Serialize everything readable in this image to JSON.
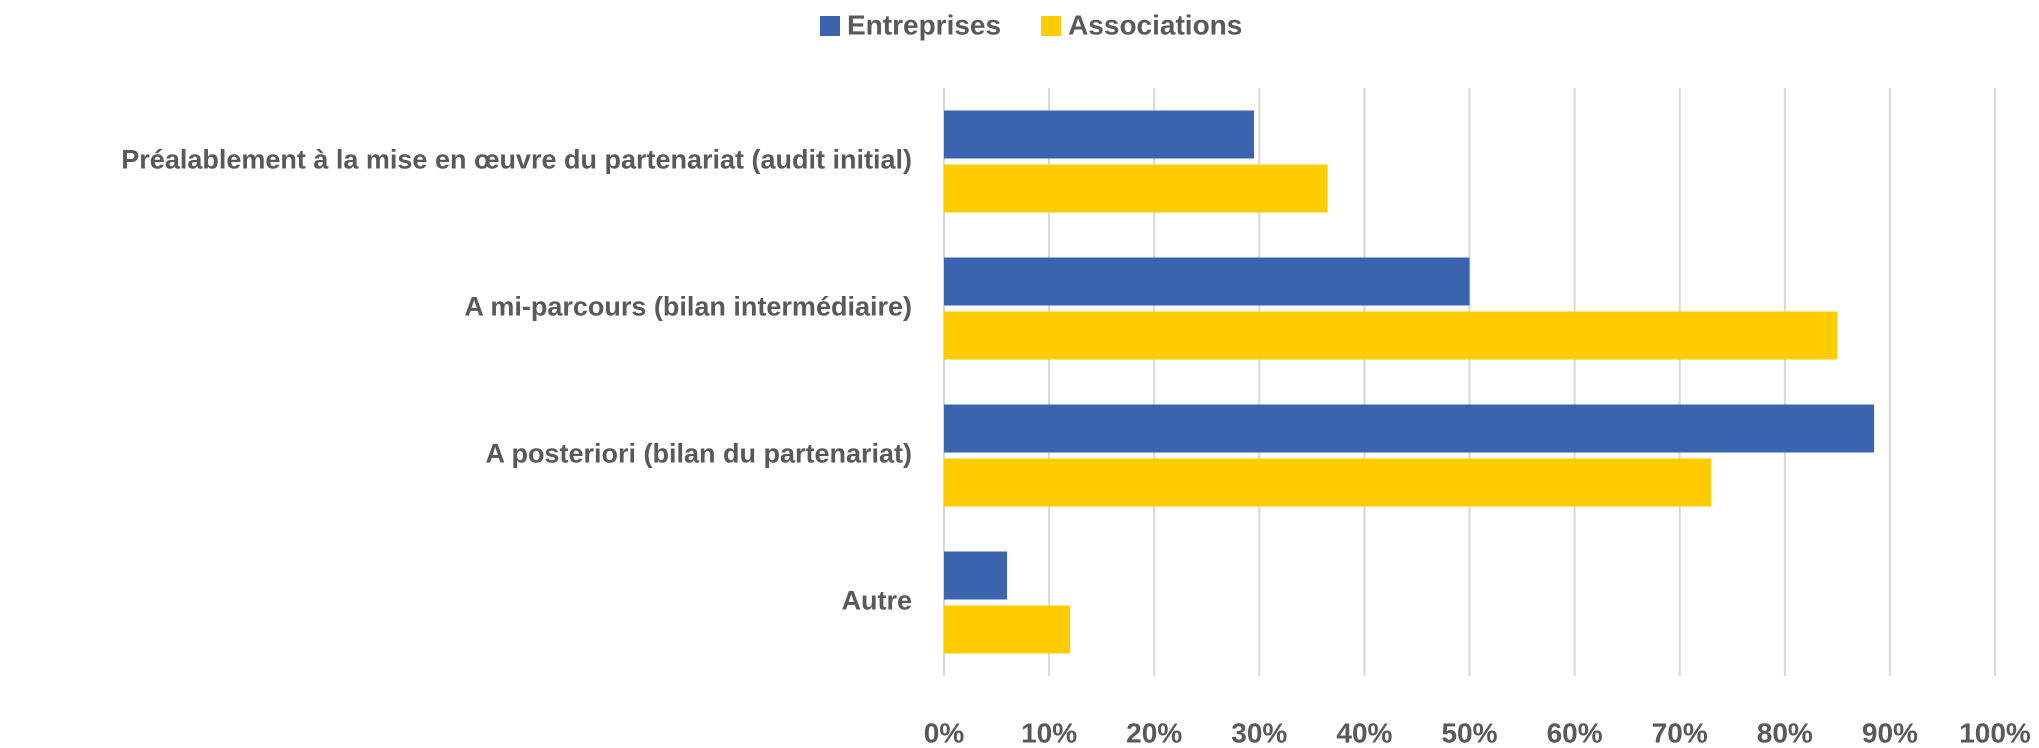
{
  "chart_data": {
    "type": "hbar",
    "categories": [
      "Préalablement à la mise en œuvre du partenariat (audit initial)",
      "A mi-parcours (bilan intermédiaire)",
      "A posteriori (bilan du partenariat)",
      "Autre"
    ],
    "series": [
      {
        "name": "Entreprises",
        "color": "#3b64ae",
        "values": [
          29.5,
          50,
          88.5,
          6
        ]
      },
      {
        "name": "Associations",
        "color": "#ffcc00",
        "values": [
          36.5,
          85,
          73,
          12
        ]
      }
    ],
    "xlim": [
      0,
      100
    ],
    "xticks": [
      {
        "value": 0,
        "label": "0%"
      },
      {
        "value": 10,
        "label": "10%"
      },
      {
        "value": 20,
        "label": "20%"
      },
      {
        "value": 30,
        "label": "30%"
      },
      {
        "value": 40,
        "label": "40%"
      },
      {
        "value": 50,
        "label": "50%"
      },
      {
        "value": 60,
        "label": "60%"
      },
      {
        "value": 70,
        "label": "70%"
      },
      {
        "value": 80,
        "label": "80%"
      },
      {
        "value": 90,
        "label": "90%"
      },
      {
        "value": 100,
        "label": "100%"
      }
    ],
    "grid": true,
    "legend": "top"
  }
}
